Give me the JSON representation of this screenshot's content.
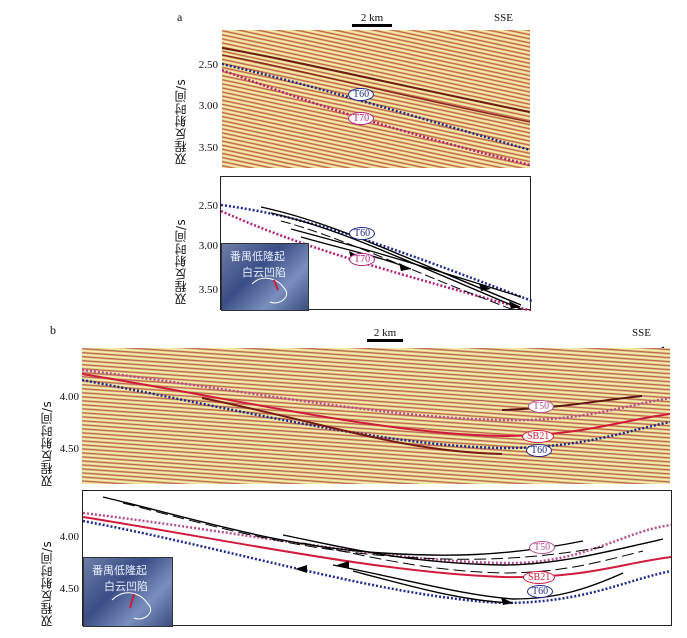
{
  "panels": {
    "a": {
      "label": "a",
      "scale": "2 km",
      "direction": "SSE",
      "ylabel": "双程反射时间/s",
      "ticks_top": [
        "2.50",
        "3.00",
        "3.50"
      ],
      "ticks_bottom": [
        "2.50",
        "3.00",
        "3.50"
      ],
      "horizons": [
        "T60",
        "T70"
      ],
      "inset": {
        "line1": "番禺低隆起",
        "line2": "白云凹陷"
      }
    },
    "b": {
      "label": "b",
      "scale": "2 km",
      "direction": "SSE",
      "ylabel": "双程反射时间/s",
      "ticks_top": [
        "4.00",
        "4.50"
      ],
      "ticks_bottom": [
        "4.00",
        "4.50"
      ],
      "horizons": [
        "T50",
        "SB21",
        "T60"
      ],
      "inset": {
        "line1": "番禺低隆起",
        "line2": "白云凹陷"
      }
    }
  },
  "colors": {
    "blue_dots": "#1d2a8a",
    "magenta_dots": "#b0207a",
    "pink_dots": "#b54f8f",
    "red_line": "#d11b3c"
  }
}
